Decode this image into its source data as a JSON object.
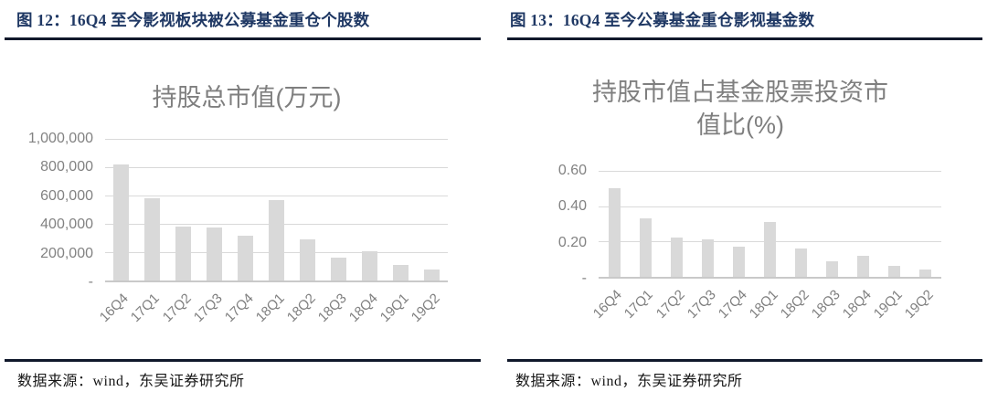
{
  "panels": [
    {
      "header": "图 12：16Q4 至今影视板块被公募基金重仓个股数",
      "source": "数据来源：wind，东吴证券研究所"
    },
    {
      "header": "图 13：16Q4 至今公募基金重仓影视基金数",
      "source": "数据来源：wind，东吴证券研究所"
    }
  ],
  "colors": {
    "header_text": "#1f3864",
    "rule": "#10182b",
    "bar": "#d9d9d9",
    "gridline": "#d9d9d9",
    "axis_text": "#828282",
    "chart_title_text": "#7f7f7f",
    "background": "#ffffff"
  },
  "chart_data": [
    {
      "type": "bar",
      "title": "持股总市值(万元)",
      "categories": [
        "16Q4",
        "17Q1",
        "17Q2",
        "17Q3",
        "17Q4",
        "18Q1",
        "18Q2",
        "18Q3",
        "18Q4",
        "19Q1",
        "19Q2"
      ],
      "values": [
        820000,
        580000,
        380000,
        375000,
        315000,
        570000,
        290000,
        160000,
        205000,
        110000,
        75000
      ],
      "xlabel": "",
      "ylabel": "",
      "ymax": 1000000,
      "ylim": [
        0,
        1000000
      ],
      "grid": true,
      "legend": false,
      "yticks": [
        {
          "label": "1,000,000",
          "value": 1000000
        },
        {
          "label": "800,000",
          "value": 800000
        },
        {
          "label": "600,000",
          "value": 600000
        },
        {
          "label": "400,000",
          "value": 400000
        },
        {
          "label": "200,000",
          "value": 200000
        },
        {
          "label": "-",
          "value": 0
        }
      ]
    },
    {
      "type": "bar",
      "title": "持股市值占基金股票投资市\n值比(%)",
      "categories": [
        "16Q4",
        "17Q1",
        "17Q2",
        "17Q3",
        "17Q4",
        "18Q1",
        "18Q2",
        "18Q3",
        "18Q4",
        "19Q1",
        "19Q2"
      ],
      "values": [
        0.5,
        0.33,
        0.22,
        0.21,
        0.17,
        0.31,
        0.16,
        0.09,
        0.12,
        0.06,
        0.04
      ],
      "xlabel": "",
      "ylabel": "",
      "ymax": 0.6,
      "ylim": [
        0,
        0.6
      ],
      "grid": true,
      "legend": false,
      "yticks": [
        {
          "label": "0.60",
          "value": 0.6
        },
        {
          "label": "0.40",
          "value": 0.4
        },
        {
          "label": "0.20",
          "value": 0.2
        },
        {
          "label": "-",
          "value": 0
        }
      ]
    }
  ]
}
